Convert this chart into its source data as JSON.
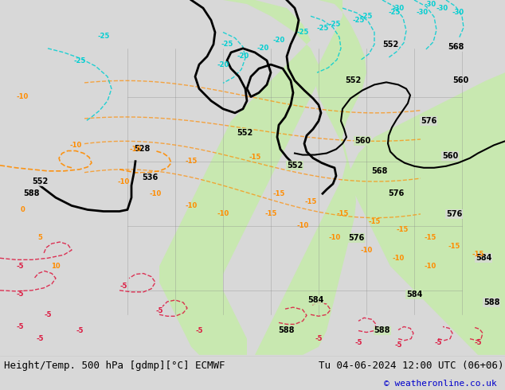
{
  "title_left": "Height/Temp. 500 hPa [gdmp][°C] ECMWF",
  "title_right": "Tu 04-06-2024 12:00 UTC (06+06)",
  "copyright": "© weatheronline.co.uk",
  "bg_color": "#d8d8d8",
  "green_region_color": "#c8e8b0",
  "fig_width": 6.34,
  "fig_height": 4.9,
  "dpi": 100,
  "bottom_bar_color": "#f0f0f0",
  "title_fontsize": 9,
  "copyright_color": "#0000cc",
  "copyright_fontsize": 8
}
